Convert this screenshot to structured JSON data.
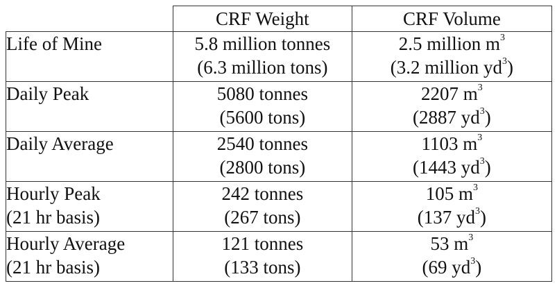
{
  "table": {
    "headers": [
      "",
      "CRF Weight",
      "CRF Volume"
    ],
    "superscript": "3",
    "rows": [
      {
        "label": [
          "Life of Mine",
          ""
        ],
        "weight": [
          "5.8 million tonnes",
          "(6.3 million tons)"
        ],
        "volume": [
          "2.5 million m",
          "(3.2 million yd",
          ")"
        ]
      },
      {
        "label": [
          "Daily Peak",
          ""
        ],
        "weight": [
          "5080 tonnes",
          "(5600 tons)"
        ],
        "volume": [
          "2207 m",
          "(2887 yd",
          ")"
        ]
      },
      {
        "label": [
          "Daily Average",
          ""
        ],
        "weight": [
          "2540 tonnes",
          "(2800 tons)"
        ],
        "volume": [
          "1103 m",
          "(1443 yd",
          ")"
        ]
      },
      {
        "label": [
          "Hourly Peak",
          "(21 hr basis)"
        ],
        "weight": [
          "242 tonnes",
          "(267 tons)"
        ],
        "volume": [
          "105 m",
          "(137 yd",
          ")"
        ]
      },
      {
        "label": [
          "Hourly Average",
          "(21 hr basis)"
        ],
        "weight": [
          "121 tonnes",
          "(133 tons)"
        ],
        "volume": [
          "53 m",
          "(69 yd",
          ")"
        ]
      }
    ]
  }
}
